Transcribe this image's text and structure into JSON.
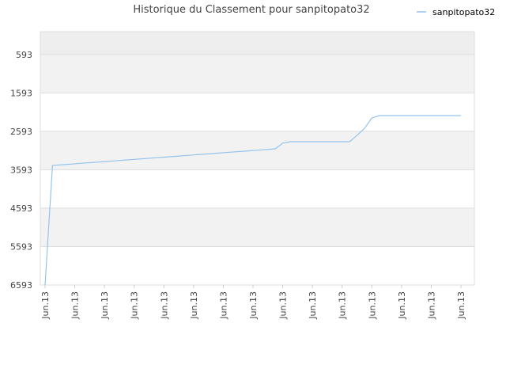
{
  "chart_data": {
    "type": "line",
    "title": "Historique du Classement pour sanpitopato32",
    "categories": [
      "Jun.13",
      null,
      null,
      null,
      "Jun.13",
      null,
      null,
      null,
      "Jun.13",
      null,
      null,
      null,
      "Jun.13",
      null,
      null,
      null,
      "Jun.13",
      null,
      null,
      null,
      "Jun.13",
      null,
      null,
      null,
      "Jun.13",
      null,
      null,
      null,
      "Jun.13",
      null,
      null,
      null,
      "Jun.13",
      null,
      null,
      null,
      "Jun.13",
      null,
      null,
      null,
      "Jun.13",
      null,
      null,
      null,
      "Jun.13",
      null,
      null,
      null,
      "Jun.13",
      null,
      null,
      null,
      "Jun.13",
      null,
      null,
      null,
      "Jun.13"
    ],
    "series": [
      {
        "name": "sanpitopato32",
        "color": "#94c4ec",
        "values": [
          6593,
          3482,
          3468,
          3453,
          3439,
          3424,
          3410,
          3396,
          3381,
          3367,
          3352,
          3338,
          3324,
          3309,
          3295,
          3280,
          3266,
          3252,
          3237,
          3223,
          3208,
          3194,
          3180,
          3165,
          3151,
          3136,
          3122,
          3108,
          3093,
          3079,
          3064,
          3049,
          2900,
          2864,
          2864,
          2864,
          2864,
          2864,
          2864,
          2864,
          2864,
          2864,
          2700,
          2520,
          2246,
          2184,
          2184,
          2184,
          2184,
          2184,
          2184,
          2184,
          2184,
          2184,
          2184,
          2184,
          2184
        ]
      }
    ],
    "ylim": [
      6593,
      0
    ],
    "yticks": [
      593,
      1593,
      2593,
      3593,
      4593,
      5593,
      6593
    ],
    "grid": true,
    "legend": "top-right"
  }
}
